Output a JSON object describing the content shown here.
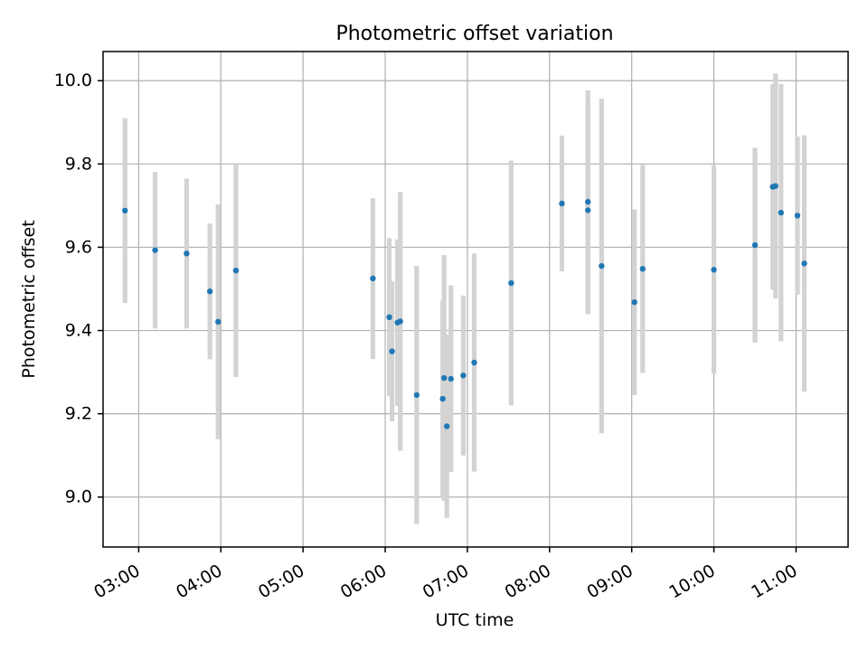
{
  "chart_data": {
    "type": "scatter",
    "title": "Photometric offset variation",
    "xlabel": "UTC time",
    "ylabel": "Photometric offset",
    "grid": true,
    "xlim": [
      2.5667,
      11.6333
    ],
    "ylim": [
      8.88,
      10.07
    ],
    "x_unit": "hours (UTC)",
    "xticks": [
      {
        "value": 3,
        "label": "03:00"
      },
      {
        "value": 4,
        "label": "04:00"
      },
      {
        "value": 5,
        "label": "05:00"
      },
      {
        "value": 6,
        "label": "06:00"
      },
      {
        "value": 7,
        "label": "07:00"
      },
      {
        "value": 8,
        "label": "08:00"
      },
      {
        "value": 9,
        "label": "09:00"
      },
      {
        "value": 10,
        "label": "10:00"
      },
      {
        "value": 11,
        "label": "11:00"
      }
    ],
    "yticks": [
      {
        "value": 9.0,
        "label": "9.0"
      },
      {
        "value": 9.2,
        "label": "9.2"
      },
      {
        "value": 9.4,
        "label": "9.4"
      },
      {
        "value": 9.6,
        "label": "9.6"
      },
      {
        "value": 9.8,
        "label": "9.8"
      },
      {
        "value": 10.0,
        "label": "10.0"
      }
    ],
    "series": [
      {
        "name": "Photometric offset",
        "marker_color": "#1f77b4",
        "errorbar_color": "#d3d3d3",
        "points": [
          {
            "x": 2.8333,
            "y": 9.688,
            "err": 0.222
          },
          {
            "x": 3.2,
            "y": 9.593,
            "err": 0.188
          },
          {
            "x": 3.5833,
            "y": 9.585,
            "err": 0.18
          },
          {
            "x": 3.8667,
            "y": 9.494,
            "err": 0.163
          },
          {
            "x": 3.9667,
            "y": 9.421,
            "err": 0.282
          },
          {
            "x": 4.1833,
            "y": 9.544,
            "err": 0.256
          },
          {
            "x": 5.85,
            "y": 9.525,
            "err": 0.193
          },
          {
            "x": 6.05,
            "y": 9.432,
            "err": 0.19
          },
          {
            "x": 6.0833,
            "y": 9.35,
            "err": 0.168
          },
          {
            "x": 6.15,
            "y": 9.419,
            "err": 0.2
          },
          {
            "x": 6.1833,
            "y": 9.422,
            "err": 0.311
          },
          {
            "x": 6.3833,
            "y": 9.245,
            "err": 0.31
          },
          {
            "x": 6.7167,
            "y": 9.286,
            "err": 0.295
          },
          {
            "x": 6.7,
            "y": 9.236,
            "err": 0.236
          },
          {
            "x": 6.75,
            "y": 9.17,
            "err": 0.22
          },
          {
            "x": 6.8,
            "y": 9.284,
            "err": 0.224
          },
          {
            "x": 6.95,
            "y": 9.292,
            "err": 0.192
          },
          {
            "x": 7.0833,
            "y": 9.323,
            "err": 0.262
          },
          {
            "x": 7.5333,
            "y": 9.514,
            "err": 0.294
          },
          {
            "x": 8.15,
            "y": 9.705,
            "err": 0.163
          },
          {
            "x": 8.4667,
            "y": 9.709,
            "err": 0.268
          },
          {
            "x": 8.4667,
            "y": 9.689,
            "err": 0.25
          },
          {
            "x": 8.6333,
            "y": 9.555,
            "err": 0.402
          },
          {
            "x": 9.0333,
            "y": 9.468,
            "err": 0.223
          },
          {
            "x": 9.1333,
            "y": 9.548,
            "err": 0.25
          },
          {
            "x": 10.0,
            "y": 9.546,
            "err": 0.25
          },
          {
            "x": 10.5,
            "y": 9.605,
            "err": 0.234
          },
          {
            "x": 10.7167,
            "y": 9.745,
            "err": 0.247
          },
          {
            "x": 10.75,
            "y": 9.747,
            "err": 0.27
          },
          {
            "x": 10.8167,
            "y": 9.683,
            "err": 0.309
          },
          {
            "x": 11.0167,
            "y": 9.676,
            "err": 0.19
          },
          {
            "x": 11.1,
            "y": 9.561,
            "err": 0.308
          }
        ]
      }
    ]
  }
}
